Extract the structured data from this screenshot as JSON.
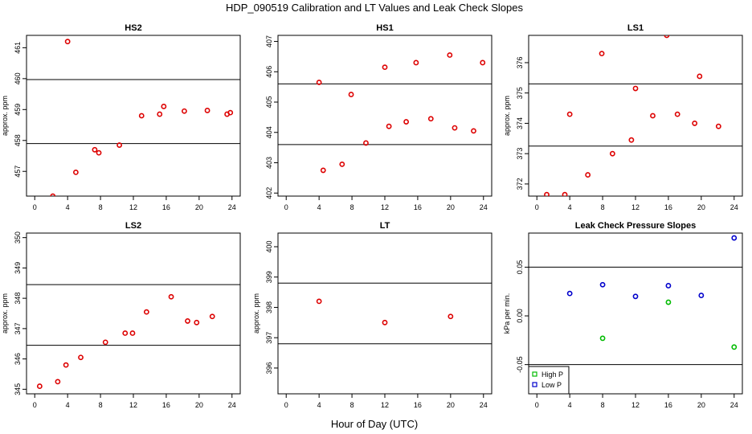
{
  "figure": {
    "title": "HDP_090519  Calibration and LT Values and Leak Check Slopes",
    "xlabel": "Hour of Day (UTC)"
  },
  "chart_data": [
    {
      "type": "scatter",
      "title": "HS2",
      "ylabel": "approx. ppm",
      "xlim": [
        -1,
        25
      ],
      "ylim": [
        456.2,
        461.4
      ],
      "xticks": [
        "0",
        "4",
        "8",
        "12",
        "16",
        "20",
        "24"
      ],
      "yticks": [
        "457",
        "458",
        "459",
        "460",
        "461"
      ],
      "hlines": [
        459.97,
        457.9
      ],
      "series": [
        {
          "color": "#dd0000",
          "x": [
            2.2,
            4,
            5,
            7.3,
            7.8,
            10.3,
            13,
            15.2,
            15.7,
            18.2,
            21,
            23.4,
            23.8
          ],
          "y": [
            456.2,
            461.2,
            456.97,
            457.7,
            457.6,
            457.85,
            458.8,
            458.85,
            459.1,
            458.95,
            458.97,
            458.85,
            458.9
          ]
        }
      ]
    },
    {
      "type": "scatter",
      "title": "HS1",
      "ylabel": "",
      "xlim": [
        -1,
        25
      ],
      "ylim": [
        401.9,
        407.2
      ],
      "xticks": [
        "0",
        "4",
        "8",
        "12",
        "16",
        "20",
        "24"
      ],
      "yticks": [
        "402",
        "403",
        "404",
        "405",
        "406",
        "407"
      ],
      "hlines": [
        405.6,
        403.6
      ],
      "series": [
        {
          "color": "#dd0000",
          "x": [
            4,
            4.5,
            6.8,
            7.9,
            9.7,
            12,
            12.5,
            14.6,
            15.8,
            17.6,
            19.9,
            20.5,
            22.8,
            23.9
          ],
          "y": [
            405.65,
            402.75,
            402.95,
            405.25,
            403.65,
            406.15,
            404.2,
            404.35,
            406.3,
            404.45,
            406.55,
            404.15,
            404.05,
            406.3
          ]
        }
      ]
    },
    {
      "type": "scatter",
      "title": "LS1",
      "ylabel": "approx. ppm",
      "xlim": [
        -1,
        25
      ],
      "ylim": [
        371.6,
        376.9
      ],
      "xticks": [
        "0",
        "4",
        "8",
        "12",
        "16",
        "20",
        "24"
      ],
      "yticks": [
        "372",
        "373",
        "374",
        "375",
        "376"
      ],
      "hlines": [
        375.3,
        373.25
      ],
      "series": [
        {
          "color": "#dd0000",
          "x": [
            1.2,
            3.4,
            4,
            6.2,
            7.9,
            9.2,
            11.5,
            12,
            14.1,
            15.8,
            17.1,
            19.2,
            19.8,
            22.1
          ],
          "y": [
            371.65,
            371.65,
            374.3,
            372.3,
            376.3,
            373.0,
            373.45,
            375.15,
            374.25,
            376.9,
            374.3,
            374.0,
            375.55,
            373.9
          ]
        }
      ]
    },
    {
      "type": "scatter",
      "title": "LS2",
      "ylabel": "approx. ppm",
      "xlim": [
        -1,
        25
      ],
      "ylim": [
        344.85,
        350.15
      ],
      "xticks": [
        "0",
        "4",
        "8",
        "12",
        "16",
        "20",
        "24"
      ],
      "yticks": [
        "345",
        "346",
        "347",
        "348",
        "349",
        "350"
      ],
      "hlines": [
        348.45,
        346.45
      ],
      "series": [
        {
          "color": "#dd0000",
          "x": [
            0.6,
            2.8,
            3.8,
            5.6,
            8.6,
            11,
            11.9,
            13.6,
            16.6,
            18.6,
            19.7,
            21.6
          ],
          "y": [
            345.1,
            345.25,
            345.8,
            346.05,
            346.55,
            346.85,
            346.85,
            347.55,
            348.05,
            347.25,
            347.2,
            347.4
          ]
        }
      ]
    },
    {
      "type": "scatter",
      "title": "LT",
      "ylabel": "approx. ppm",
      "xlim": [
        -1,
        25
      ],
      "ylim": [
        395.15,
        400.45
      ],
      "xticks": [
        "0",
        "4",
        "8",
        "12",
        "16",
        "20",
        "24"
      ],
      "yticks": [
        "396",
        "397",
        "398",
        "399",
        "400"
      ],
      "hlines": [
        398.8,
        396.8
      ],
      "series": [
        {
          "color": "#dd0000",
          "x": [
            4,
            12,
            20
          ],
          "y": [
            398.2,
            397.5,
            397.7
          ]
        }
      ]
    },
    {
      "type": "scatter",
      "title": "Leak Check Pressure Slopes",
      "ylabel": "kPa per min.",
      "xlim": [
        -1,
        25
      ],
      "ylim": [
        -0.08,
        0.085
      ],
      "xticks": [
        "0",
        "4",
        "8",
        "12",
        "16",
        "20",
        "24"
      ],
      "yticks": [
        "-0.05",
        "0.00",
        "0.05"
      ],
      "hlines": [
        0.05,
        -0.05
      ],
      "legend": "bottom-left",
      "series": [
        {
          "name": "High P",
          "color": "#00bb00",
          "x": [
            8,
            16,
            24
          ],
          "y": [
            -0.023,
            0.014,
            -0.032
          ]
        },
        {
          "name": "Low P",
          "color": "#0000cc",
          "x": [
            4,
            8,
            12,
            16,
            20,
            24
          ],
          "y": [
            0.023,
            0.032,
            0.02,
            0.031,
            0.021,
            0.08
          ]
        }
      ]
    }
  ]
}
